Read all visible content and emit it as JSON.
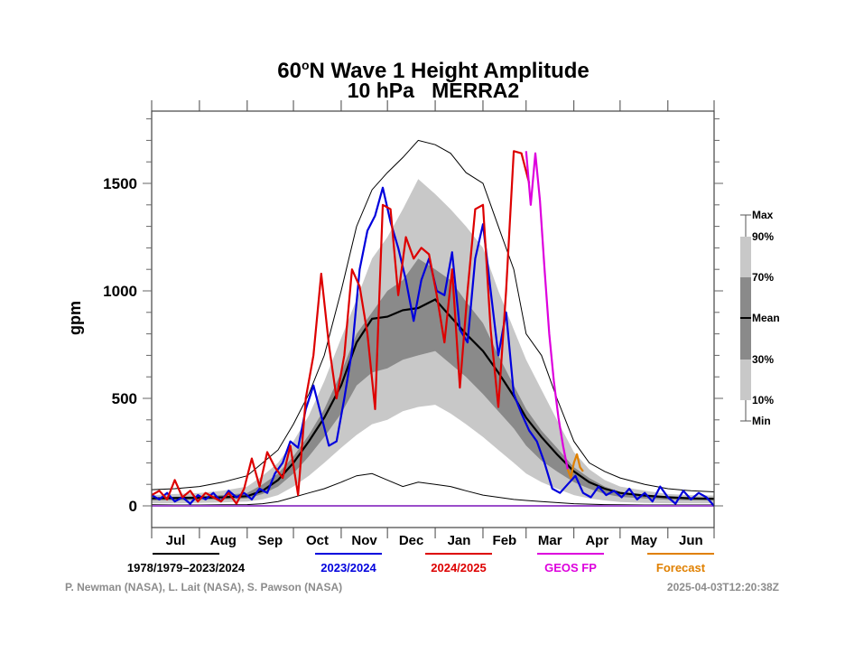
{
  "chart_data": {
    "type": "area",
    "title": "60°N Wave 1 Height Amplitude",
    "title_line1_prefix": "60",
    "title_line1_degree": "o",
    "title_line1_suffix": "N Wave 1 Height Amplitude",
    "subtitle": "10 hPa   MERRA2",
    "xlabel": "",
    "ylabel": "gpm",
    "ylim": [
      -100,
      1840
    ],
    "xlim_days": [
      0,
      365
    ],
    "grid": false,
    "y_ticks": [
      0,
      500,
      1000,
      1500
    ],
    "y_tick_labels": [
      "0",
      "500",
      "1000",
      "1500"
    ],
    "y_minor_step": 100,
    "x_tick_labels": [
      "Jul",
      "Aug",
      "Sep",
      "Oct",
      "Nov",
      "Dec",
      "Jan",
      "Feb",
      "Mar",
      "Apr",
      "May",
      "Jun"
    ],
    "x_month_start_days": [
      0,
      31,
      62,
      92,
      123,
      153,
      184,
      215,
      243,
      274,
      304,
      335,
      365
    ],
    "x_unit": "days since Jul 1",
    "zero_line_color": "#9b4dca",
    "climatology": {
      "days": [
        0,
        15,
        31,
        46,
        62,
        72,
        82,
        92,
        102,
        112,
        123,
        133,
        143,
        153,
        163,
        173,
        184,
        194,
        204,
        215,
        225,
        235,
        243,
        253,
        263,
        274,
        284,
        294,
        304,
        320,
        335,
        350,
        365
      ],
      "max": [
        75,
        80,
        90,
        110,
        140,
        200,
        260,
        380,
        520,
        700,
        1000,
        1300,
        1470,
        1550,
        1620,
        1700,
        1680,
        1640,
        1550,
        1500,
        1300,
        1100,
        800,
        700,
        500,
        300,
        200,
        160,
        130,
        100,
        80,
        70,
        65
      ],
      "p90": [
        50,
        55,
        60,
        70,
        90,
        140,
        200,
        300,
        420,
        580,
        780,
        960,
        1150,
        1250,
        1380,
        1520,
        1450,
        1380,
        1300,
        1200,
        1000,
        820,
        680,
        540,
        400,
        250,
        170,
        120,
        90,
        70,
        55,
        50,
        48
      ],
      "p70": [
        40,
        42,
        45,
        50,
        60,
        100,
        150,
        230,
        330,
        450,
        620,
        800,
        900,
        1000,
        1050,
        1150,
        1100,
        1050,
        950,
        850,
        700,
        560,
        450,
        350,
        270,
        180,
        130,
        90,
        65,
        52,
        45,
        40,
        38
      ],
      "mean": [
        35,
        36,
        38,
        40,
        45,
        70,
        120,
        200,
        300,
        410,
        560,
        760,
        870,
        880,
        910,
        920,
        960,
        880,
        800,
        720,
        620,
        510,
        410,
        320,
        240,
        160,
        110,
        80,
        60,
        48,
        40,
        35,
        33
      ],
      "p30": [
        25,
        26,
        28,
        30,
        35,
        55,
        90,
        150,
        230,
        320,
        430,
        560,
        620,
        640,
        680,
        700,
        720,
        660,
        600,
        520,
        440,
        360,
        280,
        210,
        160,
        110,
        80,
        55,
        42,
        34,
        28,
        25,
        24
      ],
      "p10": [
        12,
        12,
        14,
        16,
        20,
        30,
        50,
        90,
        140,
        200,
        270,
        330,
        380,
        400,
        440,
        460,
        470,
        430,
        380,
        320,
        260,
        200,
        150,
        110,
        80,
        50,
        35,
        25,
        18,
        14,
        12,
        12,
        12
      ],
      "min": [
        5,
        4,
        4,
        5,
        6,
        10,
        20,
        40,
        60,
        80,
        110,
        140,
        150,
        120,
        90,
        110,
        100,
        90,
        70,
        50,
        40,
        30,
        25,
        20,
        15,
        10,
        8,
        6,
        5,
        4,
        4,
        4,
        4
      ]
    },
    "series": [
      {
        "name": "2023/2024",
        "color": "#0000dd",
        "days": [
          0,
          5,
          10,
          15,
          20,
          25,
          30,
          35,
          40,
          45,
          50,
          55,
          60,
          65,
          70,
          75,
          80,
          85,
          90,
          95,
          100,
          105,
          110,
          115,
          120,
          125,
          130,
          135,
          140,
          145,
          150,
          155,
          160,
          165,
          170,
          175,
          180,
          185,
          190,
          195,
          200,
          205,
          210,
          215,
          220,
          225,
          230,
          235,
          240,
          245,
          250,
          255,
          260,
          265,
          270,
          275,
          280,
          285,
          290,
          295,
          300,
          305,
          310,
          315,
          320,
          325,
          330,
          335,
          340,
          345,
          350,
          355,
          360,
          365
        ],
        "values": [
          50,
          30,
          60,
          20,
          40,
          10,
          50,
          30,
          60,
          20,
          70,
          40,
          60,
          30,
          80,
          60,
          150,
          200,
          300,
          270,
          450,
          560,
          420,
          280,
          300,
          500,
          720,
          1100,
          1280,
          1350,
          1480,
          1320,
          1200,
          1050,
          860,
          1050,
          1150,
          1000,
          980,
          1180,
          820,
          760,
          1150,
          1310,
          1000,
          700,
          900,
          520,
          430,
          350,
          300,
          200,
          80,
          60,
          100,
          140,
          60,
          40,
          90,
          50,
          70,
          40,
          80,
          30,
          60,
          20,
          90,
          40,
          10,
          70,
          30,
          60,
          40,
          0
        ]
      },
      {
        "name": "2024/2025",
        "color": "#dd0000",
        "days": [
          0,
          5,
          10,
          15,
          20,
          25,
          30,
          35,
          40,
          45,
          50,
          55,
          60,
          65,
          70,
          75,
          80,
          85,
          90,
          95,
          100,
          105,
          110,
          115,
          120,
          125,
          130,
          135,
          140,
          145,
          150,
          155,
          160,
          165,
          170,
          175,
          180,
          185,
          190,
          195,
          200,
          205,
          210,
          215,
          220,
          225,
          230,
          235,
          240,
          245
        ],
        "values": [
          50,
          70,
          30,
          120,
          40,
          70,
          20,
          60,
          40,
          20,
          60,
          10,
          80,
          220,
          90,
          250,
          180,
          130,
          280,
          50,
          500,
          700,
          1080,
          750,
          500,
          700,
          1100,
          1020,
          800,
          450,
          1400,
          1380,
          980,
          1250,
          1150,
          1200,
          1170,
          980,
          760,
          1100,
          550,
          1000,
          1380,
          1400,
          820,
          460,
          1000,
          1650,
          1640,
          1500
        ]
      },
      {
        "name": "GEOS FP",
        "color": "#dd00dd",
        "days": [
          243,
          246,
          249,
          252,
          255,
          258,
          261,
          264,
          267,
          270
        ],
        "values": [
          1650,
          1400,
          1640,
          1420,
          1100,
          800,
          580,
          410,
          280,
          170
        ]
      },
      {
        "name": "Forecast",
        "color": "#e08000",
        "days": [
          270,
          272,
          274,
          276,
          278,
          280
        ],
        "values": [
          170,
          130,
          200,
          240,
          180,
          160
        ]
      }
    ],
    "legend": {
      "placement": "bottom",
      "entries": [
        {
          "label": "1978/1979–2023/2024",
          "color": "#000000"
        },
        {
          "label": "2023/2024",
          "color": "#0000dd"
        },
        {
          "label": "2024/2025",
          "color": "#dd0000"
        },
        {
          "label": "GEOS FP",
          "color": "#dd00dd"
        },
        {
          "label": "Forecast",
          "color": "#e08000"
        }
      ]
    },
    "percentile_key": {
      "placement": "right",
      "labels": [
        "Max",
        "90%",
        "70%",
        "Mean",
        "30%",
        "10%",
        "Min"
      ],
      "band_colors": {
        "outer": "#c8c8c8",
        "inner": "#8a8a8a",
        "mean": "#000000"
      }
    }
  },
  "footer": {
    "authors": "P. Newman (NASA), L. Lait (NASA), S. Pawson (NASA)",
    "timestamp": "2025-04-03T12:20:38Z"
  }
}
